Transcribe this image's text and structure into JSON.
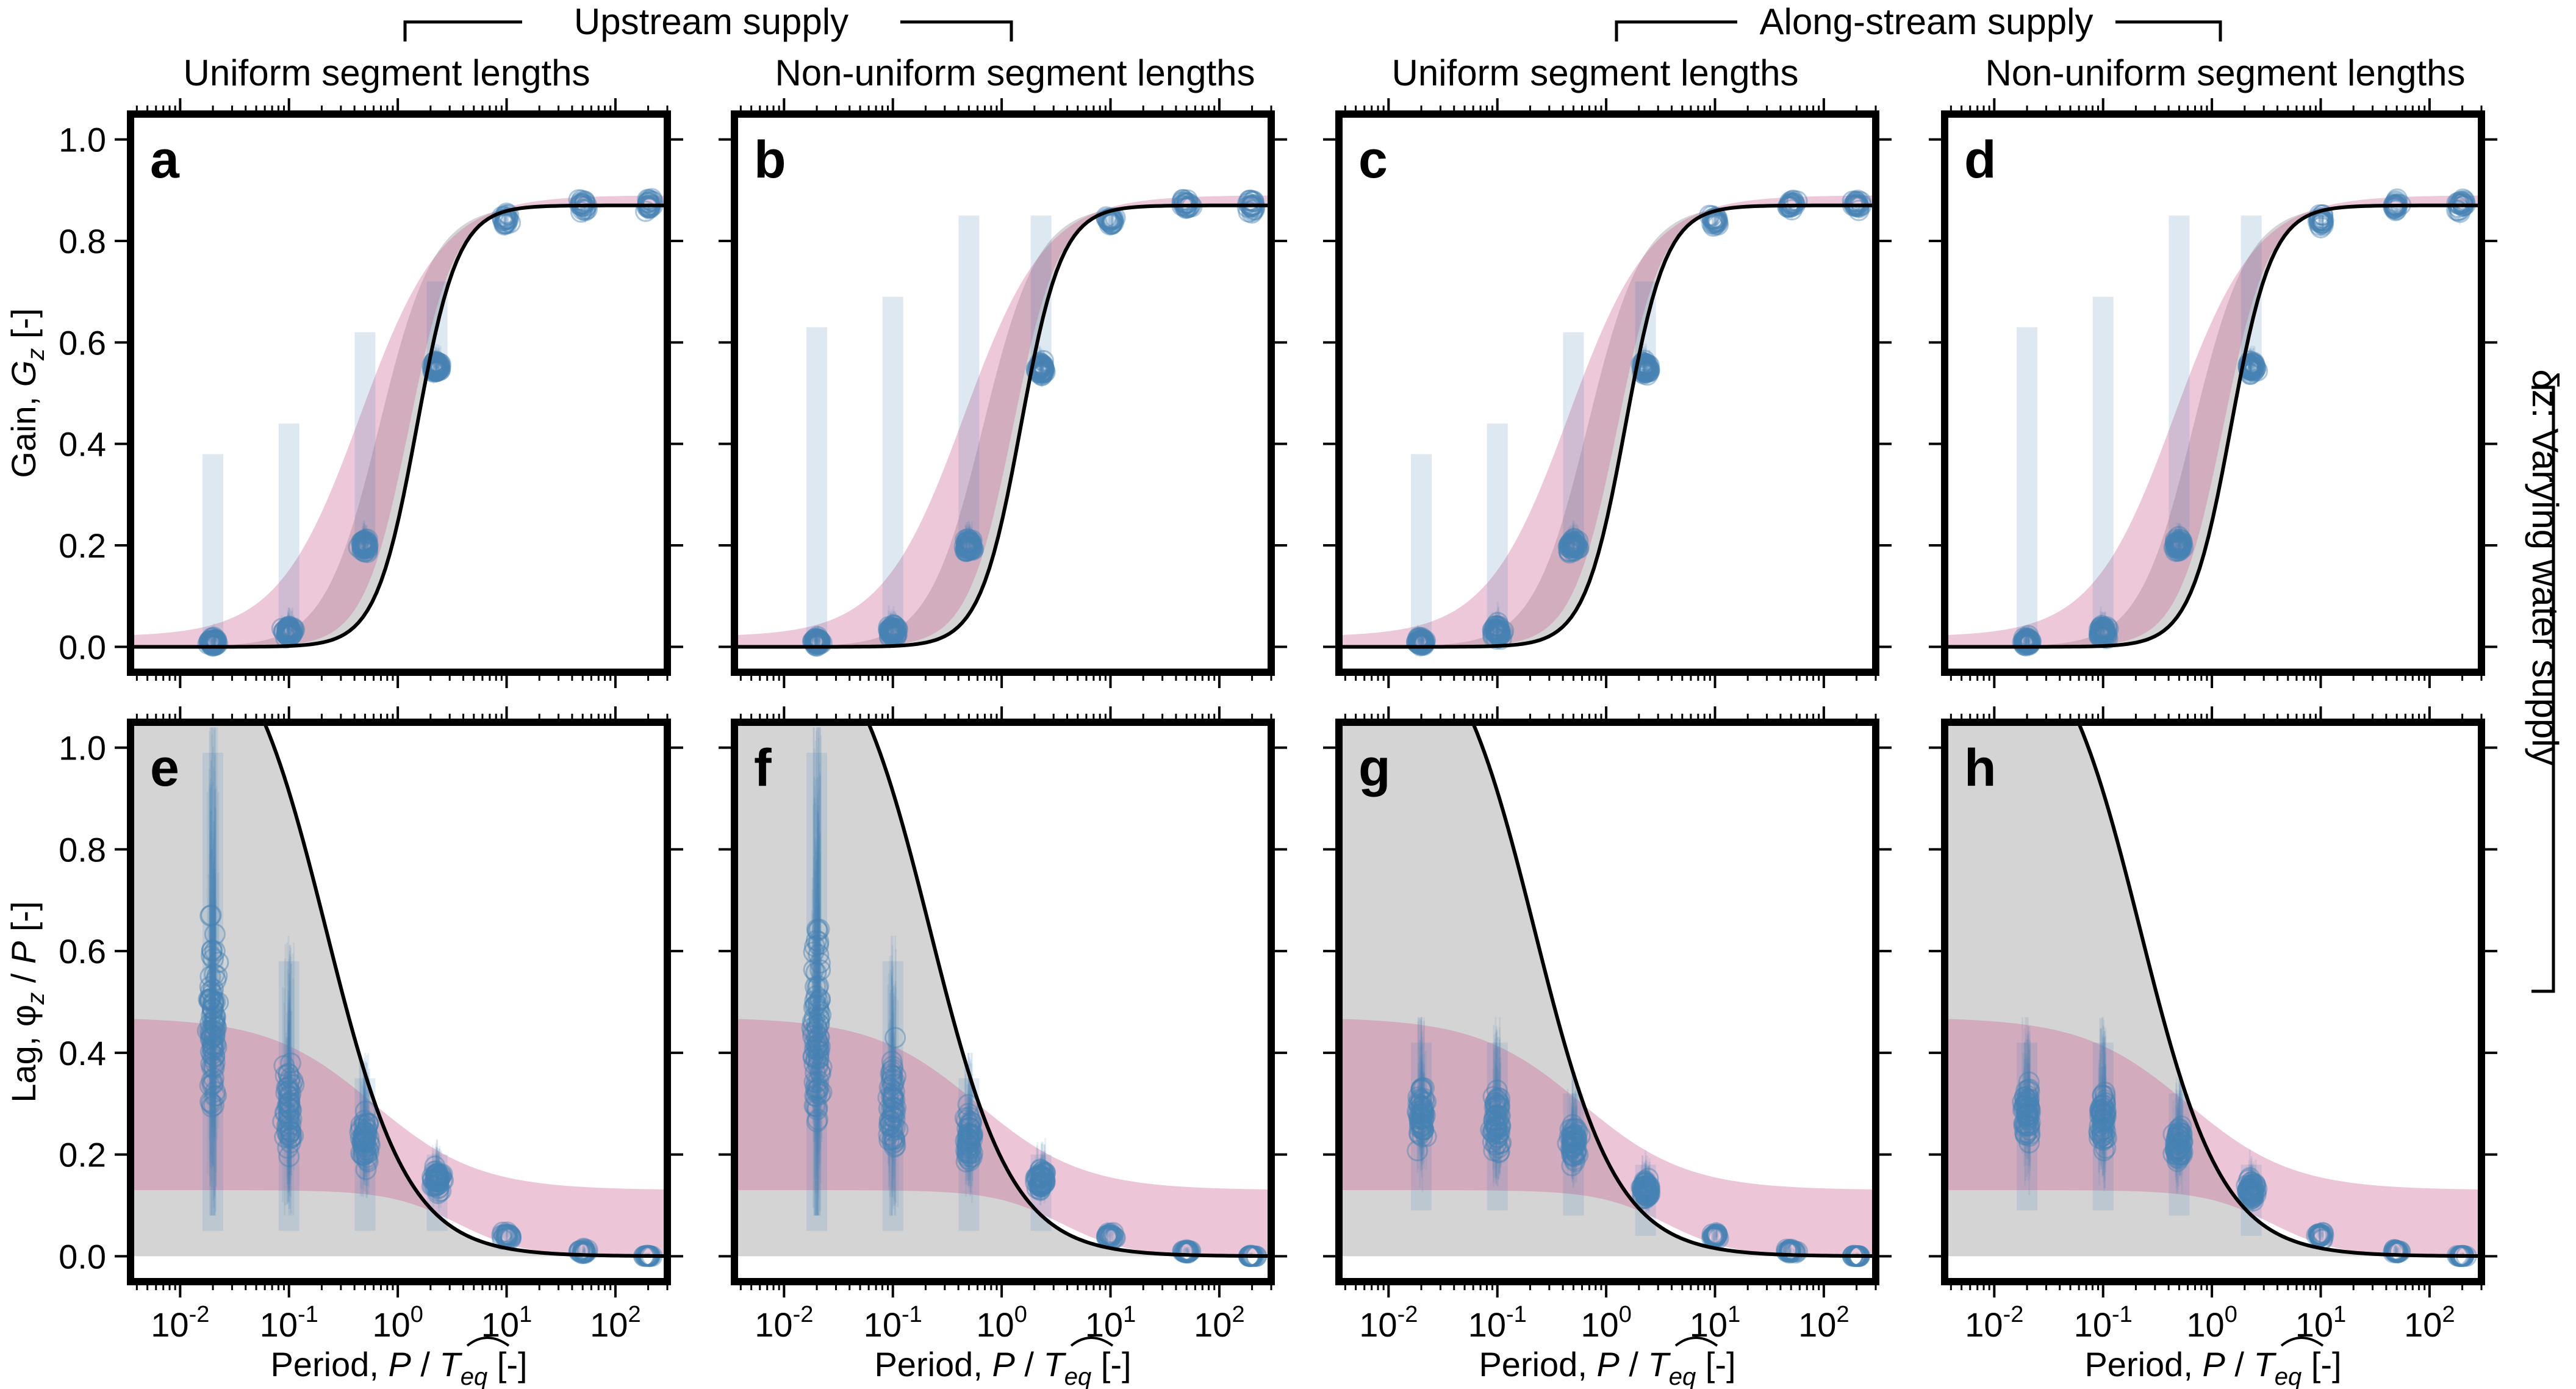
{
  "figure": {
    "group_titles": [
      "Upstream supply",
      "Along-stream supply"
    ],
    "column_titles": [
      "Uniform segment lengths",
      "Non-uniform segment lengths",
      "Uniform segment lengths",
      "Non-uniform segment lengths"
    ],
    "row_label": "δz: Varying water supply",
    "colors": {
      "points": "#4682b4",
      "band_pink": "#cf6e9a",
      "band_gray": "#b0b0b0",
      "curve": "#000000",
      "frame": "#000000"
    }
  },
  "chart_data": [
    {
      "type": "scatter",
      "panels": [
        "a",
        "b",
        "c",
        "d"
      ],
      "ylabel": "Gain, Gz [-]",
      "ylabel_parts": {
        "prefix": "Gain, ",
        "symbol": "G",
        "subscript": "z",
        "suffix": " [-]"
      },
      "xlabel": "Period, P / T̂eq [-]",
      "xlabel_parts": {
        "prefix": "Period, ",
        "symbol": "P",
        "mid": " / ",
        "hat": "T",
        "subscript": "eq",
        "suffix": " [-]"
      },
      "x_scale": "log",
      "xlim": [
        0.0035,
        300
      ],
      "ylim": [
        -0.05,
        1.05
      ],
      "x_ticks": [
        "10-2",
        "10-1",
        "100",
        "101",
        "102"
      ],
      "y_ticks": [
        "0.0",
        "0.2",
        "0.4",
        "0.6",
        "0.8",
        "1.0"
      ],
      "model_curve": {
        "plateau": 0.87,
        "midpoint_x": 1.5,
        "slope": 2.3
      },
      "clusters": [
        {
          "x": 0.02,
          "y_center": 0.01,
          "y_max": 0.38
        },
        {
          "x": 0.1,
          "y_center": 0.03,
          "y_max": 0.44
        },
        {
          "x": 0.5,
          "y_center": 0.2,
          "y_max": 0.62
        },
        {
          "x": 2.3,
          "y_center": 0.55,
          "y_max": 0.72
        },
        {
          "x": 10,
          "y_center": 0.84,
          "y_max": 0.87
        },
        {
          "x": 50,
          "y_center": 0.87,
          "y_max": 0.87
        },
        {
          "x": 200,
          "y_center": 0.87,
          "y_max": 0.87
        }
      ]
    },
    {
      "type": "scatter",
      "panels": [
        "e",
        "f",
        "g",
        "h"
      ],
      "ylabel": "Lag, φz / P [-]",
      "ylabel_parts": {
        "prefix": "Lag, ",
        "symbol": "φ",
        "subscript": "z",
        "suffix": " / P [-]"
      },
      "xlabel": "Period, P / T̂eq [-]",
      "xlabel_parts": {
        "prefix": "Period, ",
        "symbol": "P",
        "mid": " / ",
        "hat": "T",
        "subscript": "eq",
        "suffix": " [-]"
      },
      "x_scale": "log",
      "xlim": [
        0.0035,
        300
      ],
      "ylim": [
        -0.05,
        1.05
      ],
      "x_ticks": [
        "10-2",
        "10-1",
        "100",
        "101",
        "102"
      ],
      "y_ticks": [
        "0.0",
        "0.2",
        "0.4",
        "0.6",
        "0.8",
        "1.0"
      ],
      "model_curve": {
        "form": "upper envelope of lag",
        "decay_x": 2.5
      },
      "clusters_upstream": [
        {
          "x": 0.02,
          "y_center": 0.45,
          "y_min": 0.1,
          "y_max": 0.99
        },
        {
          "x": 0.1,
          "y_center": 0.3,
          "y_min": 0.1,
          "y_max": 0.58
        },
        {
          "x": 0.5,
          "y_center": 0.23,
          "y_min": 0.1,
          "y_max": 0.35
        },
        {
          "x": 2.3,
          "y_center": 0.15,
          "y_min": 0.1,
          "y_max": 0.2
        },
        {
          "x": 10,
          "y_center": 0.04,
          "y_min": 0.02,
          "y_max": 0.06
        },
        {
          "x": 50,
          "y_center": 0.01,
          "y_min": 0.0,
          "y_max": 0.02
        },
        {
          "x": 200,
          "y_center": 0.0,
          "y_min": 0.0,
          "y_max": 0.01
        }
      ],
      "clusters_alongstream": [
        {
          "x": 0.02,
          "y_center": 0.28,
          "y_min": 0.14,
          "y_max": 0.42
        },
        {
          "x": 0.1,
          "y_center": 0.27,
          "y_min": 0.14,
          "y_max": 0.42
        },
        {
          "x": 0.5,
          "y_center": 0.22,
          "y_min": 0.13,
          "y_max": 0.32
        },
        {
          "x": 2.3,
          "y_center": 0.13,
          "y_min": 0.09,
          "y_max": 0.18
        },
        {
          "x": 10,
          "y_center": 0.04,
          "y_min": 0.02,
          "y_max": 0.06
        },
        {
          "x": 50,
          "y_center": 0.01,
          "y_min": 0.0,
          "y_max": 0.02
        },
        {
          "x": 200,
          "y_center": 0.0,
          "y_min": 0.0,
          "y_max": 0.01
        }
      ]
    }
  ]
}
